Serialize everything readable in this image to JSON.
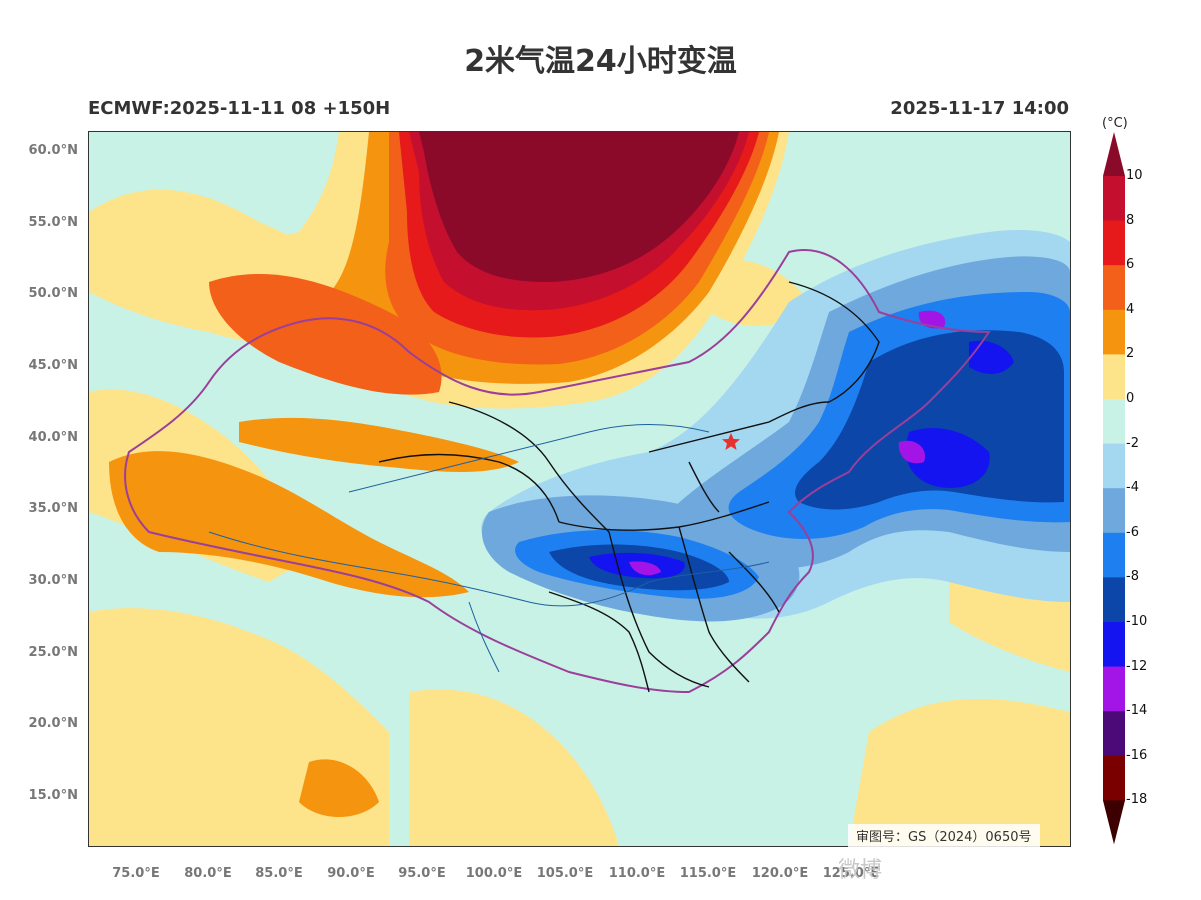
{
  "title": "2米气温24小时变温",
  "subtitle_left": "ECMWF:2025-11-11 08 +150H",
  "subtitle_right": "2025-11-17 14:00",
  "approval_number": "审图号：GS（2024）0650号",
  "watermark": "微博",
  "latitude_labels": [
    "60.0°N",
    "55.0°N",
    "50.0°N",
    "45.0°N",
    "40.0°N",
    "35.0°N",
    "30.0°N",
    "25.0°N",
    "20.0°N",
    "15.0°N"
  ],
  "longitude_labels": [
    "75.0°E",
    "80.0°E",
    "85.0°E",
    "90.0°E",
    "95.0°E",
    "100.0°E",
    "105.0°E",
    "110.0°E",
    "115.0°E",
    "120.0°E",
    "125.0°E"
  ],
  "colorbar": {
    "unit": "(°C)",
    "labels": [
      "10",
      "8",
      "6",
      "4",
      "2",
      "0",
      "-2",
      "-4",
      "-6",
      "-8",
      "-10",
      "-12",
      "-14",
      "-16",
      "-18"
    ],
    "colors": [
      "#8b0a2a",
      "#c4102e",
      "#e61a1a",
      "#f2601a",
      "#f5940f",
      "#fde38a",
      "#c9f2e6",
      "#a3d8f0",
      "#6fa8dc",
      "#1e7ff0",
      "#0b46a8",
      "#1414f0",
      "#a314e6",
      "#4b0a78",
      "#7a0000",
      "#3d0000"
    ]
  },
  "map": {
    "marker": "beijing-star-marker",
    "marker_color": "#e83030",
    "border_color": "#9a3f9a",
    "province_color": "#111111",
    "river_color": "#1f5f9f"
  }
}
